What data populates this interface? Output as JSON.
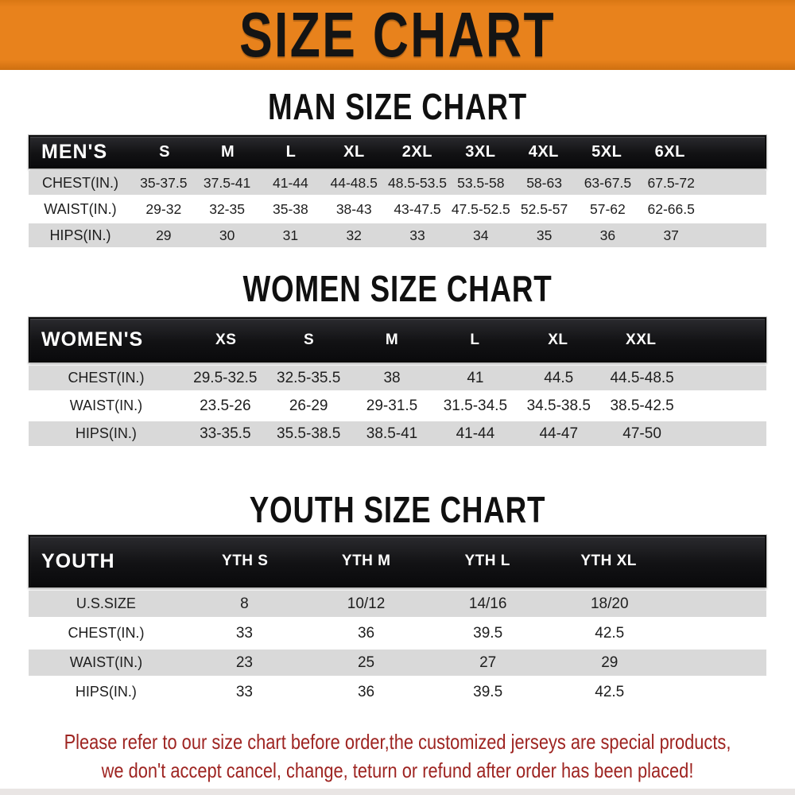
{
  "banner": {
    "title": "SIZE CHART"
  },
  "colors": {
    "banner_bg": "#E8821C",
    "banner_edge": "#CE6F10",
    "header_bar": "#121212",
    "header_text": "#FFFFFF",
    "row_shade": "#D9D9D9",
    "body_text": "#1E1E1E",
    "footer_text": "#9E2421"
  },
  "chart_data": [
    {
      "type": "table",
      "title": "MAN SIZE CHART",
      "corner_label": "MEN'S",
      "columns": [
        "S",
        "M",
        "L",
        "XL",
        "2XL",
        "3XL",
        "4XL",
        "5XL",
        "6XL"
      ],
      "rows": [
        {
          "label": "CHEST(IN.)",
          "values": [
            "35-37.5",
            "37.5-41",
            "41-44",
            "44-48.5",
            "48.5-53.5",
            "53.5-58",
            "58-63",
            "63-67.5",
            "67.5-72"
          ]
        },
        {
          "label": "WAIST(IN.)",
          "values": [
            "29-32",
            "32-35",
            "35-38",
            "38-43",
            "43-47.5",
            "47.5-52.5",
            "52.5-57",
            "57-62",
            "62-66.5"
          ]
        },
        {
          "label": "HIPS(IN.)",
          "values": [
            "29",
            "30",
            "31",
            "32",
            "33",
            "34",
            "35",
            "36",
            "37"
          ]
        }
      ]
    },
    {
      "type": "table",
      "title": "WOMEN SIZE CHART",
      "corner_label": "WOMEN'S",
      "columns": [
        "XS",
        "S",
        "M",
        "L",
        "XL",
        "XXL"
      ],
      "rows": [
        {
          "label": "CHEST(IN.)",
          "values": [
            "29.5-32.5",
            "32.5-35.5",
            "38",
            "41",
            "44.5",
            "44.5-48.5"
          ]
        },
        {
          "label": "WAIST(IN.)",
          "values": [
            "23.5-26",
            "26-29",
            "29-31.5",
            "31.5-34.5",
            "34.5-38.5",
            "38.5-42.5"
          ]
        },
        {
          "label": "HIPS(IN.)",
          "values": [
            "33-35.5",
            "35.5-38.5",
            "38.5-41",
            "41-44",
            "44-47",
            "47-50"
          ]
        }
      ]
    },
    {
      "type": "table",
      "title": "YOUTH SIZE CHART",
      "corner_label": "YOUTH",
      "columns": [
        "YTH S",
        "YTH M",
        "YTH L",
        "YTH XL"
      ],
      "rows": [
        {
          "label": "U.S.SIZE",
          "values": [
            "8",
            "10/12",
            "14/16",
            "18/20"
          ]
        },
        {
          "label": "CHEST(IN.)",
          "values": [
            "33",
            "36",
            "39.5",
            "42.5"
          ]
        },
        {
          "label": "WAIST(IN.)",
          "values": [
            "23",
            "25",
            "27",
            "29"
          ]
        },
        {
          "label": "HIPS(IN.)",
          "values": [
            "33",
            "36",
            "39.5",
            "42.5"
          ]
        }
      ]
    }
  ],
  "footer": {
    "line1": "Please refer to our size chart before order,the customized jerseys are special products,",
    "line2": "we don't accept cancel, change, teturn or refund after order has been placed!"
  }
}
